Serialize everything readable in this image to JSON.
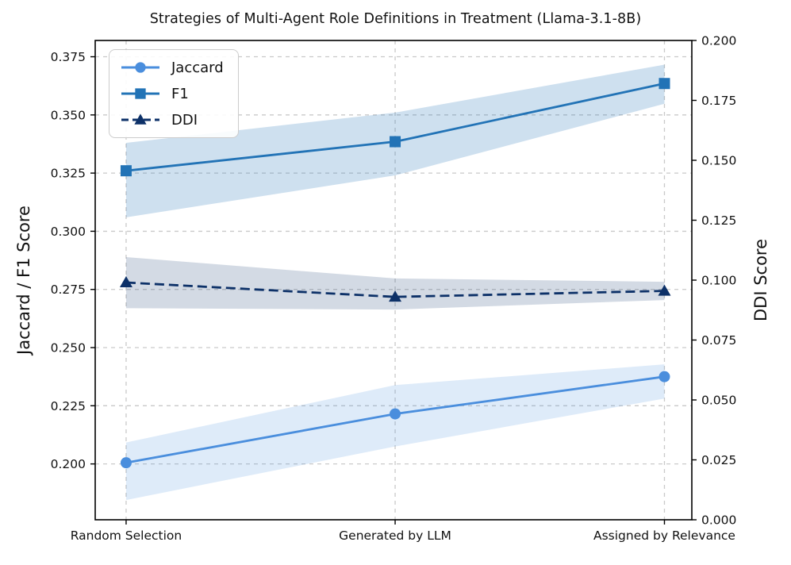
{
  "chart_data": {
    "type": "line",
    "title": "Strategies of Multi-Agent Role Definitions in Treatment (Llama-3.1-8B)",
    "ylabel_left": "Jaccard / F1 Score",
    "ylabel_right": "DDI Score",
    "categories": [
      "Random Selection",
      "Generated by LLM",
      "Assigned by Relevance"
    ],
    "ylim_left": [
      0.176,
      0.382
    ],
    "ylim_right": [
      0.0,
      0.2
    ],
    "yticks_left": [
      "0.200",
      "0.225",
      "0.250",
      "0.275",
      "0.300",
      "0.325",
      "0.350",
      "0.375"
    ],
    "yticks_right": [
      "0.000",
      "0.025",
      "0.050",
      "0.075",
      "0.100",
      "0.125",
      "0.150",
      "0.175",
      "0.200"
    ],
    "grid": true,
    "grid_color": "#c9c9c9",
    "legend_position": "upper-left",
    "series": [
      {
        "name": "Jaccard",
        "axis": "left",
        "line_style": "solid",
        "marker": "circle",
        "color": "#4a8edd",
        "band_color": "rgba(74,142,221,0.18)",
        "values": [
          0.2005,
          0.2215,
          0.2375
        ],
        "band_lower": [
          0.1845,
          0.2075,
          0.2281
        ],
        "band_upper": [
          0.2092,
          0.2339,
          0.2428
        ]
      },
      {
        "name": "F1",
        "axis": "left",
        "line_style": "solid",
        "marker": "square",
        "color": "#2273b6",
        "band_color": "rgba(34,115,182,0.22)",
        "values": [
          0.326,
          0.3385,
          0.3635
        ],
        "band_lower": [
          0.306,
          0.324,
          0.3548
        ],
        "band_upper": [
          0.338,
          0.351,
          0.3716
        ]
      },
      {
        "name": "DDI",
        "axis": "right",
        "line_style": "dashed",
        "marker": "triangle",
        "color": "#0d3168",
        "band_color": "rgba(13,49,104,0.18)",
        "values": [
          0.099,
          0.093,
          0.0955
        ],
        "band_lower": [
          0.0883,
          0.0877,
          0.0917
        ],
        "band_upper": [
          0.1096,
          0.1007,
          0.0993
        ]
      }
    ]
  }
}
